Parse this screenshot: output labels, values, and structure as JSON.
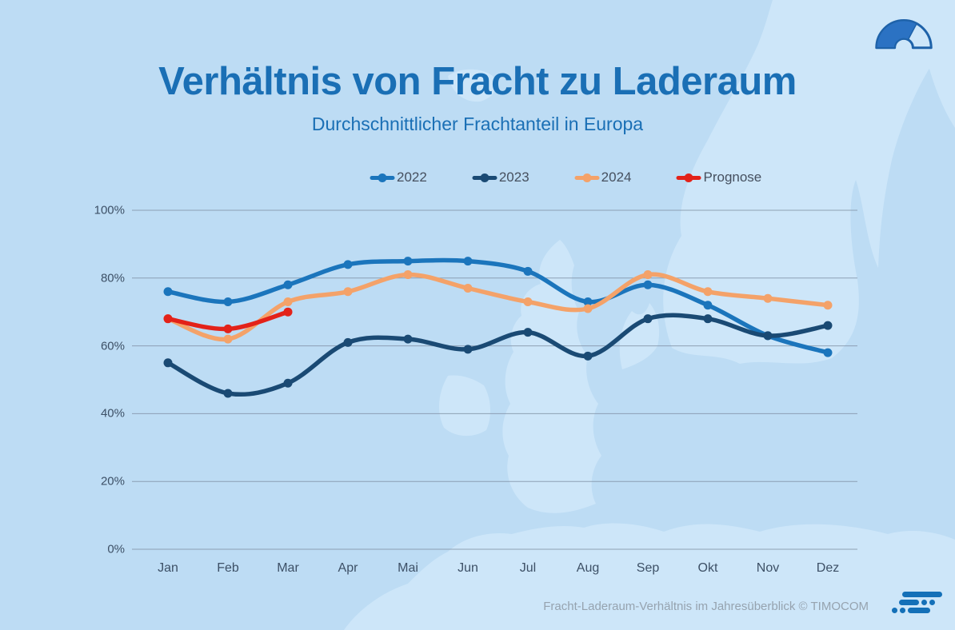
{
  "header": {
    "title": "Verhältnis von Fracht zu Laderaum",
    "subtitle": "Durchschnittlicher Frachtanteil in Europa"
  },
  "icons": {
    "header_logo": "gauge-barometer-icon",
    "footer_logo": "timocom-logo"
  },
  "legend": {
    "items": [
      {
        "label": "2022",
        "color": "#1B75BC"
      },
      {
        "label": "2023",
        "color": "#1A4A74"
      },
      {
        "label": "2024",
        "color": "#F4A269"
      },
      {
        "label": "Prognose",
        "color": "#E32219"
      }
    ]
  },
  "chart_data": {
    "type": "line",
    "title": "Verhältnis von Fracht zu Laderaum",
    "subtitle": "Durchschnittlicher Frachtanteil in Europa",
    "categories": [
      "Jan",
      "Feb",
      "Mar",
      "Apr",
      "Mai",
      "Jun",
      "Jul",
      "Aug",
      "Sep",
      "Okt",
      "Nov",
      "Dez"
    ],
    "yticks": [
      "0%",
      "20%",
      "40%",
      "60%",
      "80%",
      "100%"
    ],
    "ylim": [
      0,
      100
    ],
    "grid": "horizontal",
    "legend_position": "top",
    "series": [
      {
        "name": "2022",
        "color": "#1B75BC",
        "values": [
          76,
          73,
          78,
          84,
          85,
          85,
          82,
          73,
          78,
          72,
          63,
          58
        ]
      },
      {
        "name": "2023",
        "color": "#1A4A74",
        "values": [
          55,
          46,
          49,
          61,
          62,
          59,
          64,
          57,
          68,
          68,
          63,
          66
        ]
      },
      {
        "name": "2024",
        "color": "#F4A269",
        "values": [
          68,
          62,
          73,
          76,
          81,
          77,
          73,
          71,
          81,
          76,
          74,
          72
        ]
      },
      {
        "name": "Prognose",
        "color": "#E32219",
        "values": [
          68,
          65,
          70
        ]
      }
    ]
  },
  "footer": {
    "caption": "Fracht-Laderaum-Verhältnis im Jahresüberblick © TIMOCOM"
  },
  "colors": {
    "background": "#BDDCF4",
    "map_land": "#CDE6F9",
    "title_blue": "#1A6FB5",
    "gridline": "#8495A9",
    "axis_text": "#3D5066",
    "footer_text": "#96A3AF",
    "logo_blue": "#1470B8"
  }
}
